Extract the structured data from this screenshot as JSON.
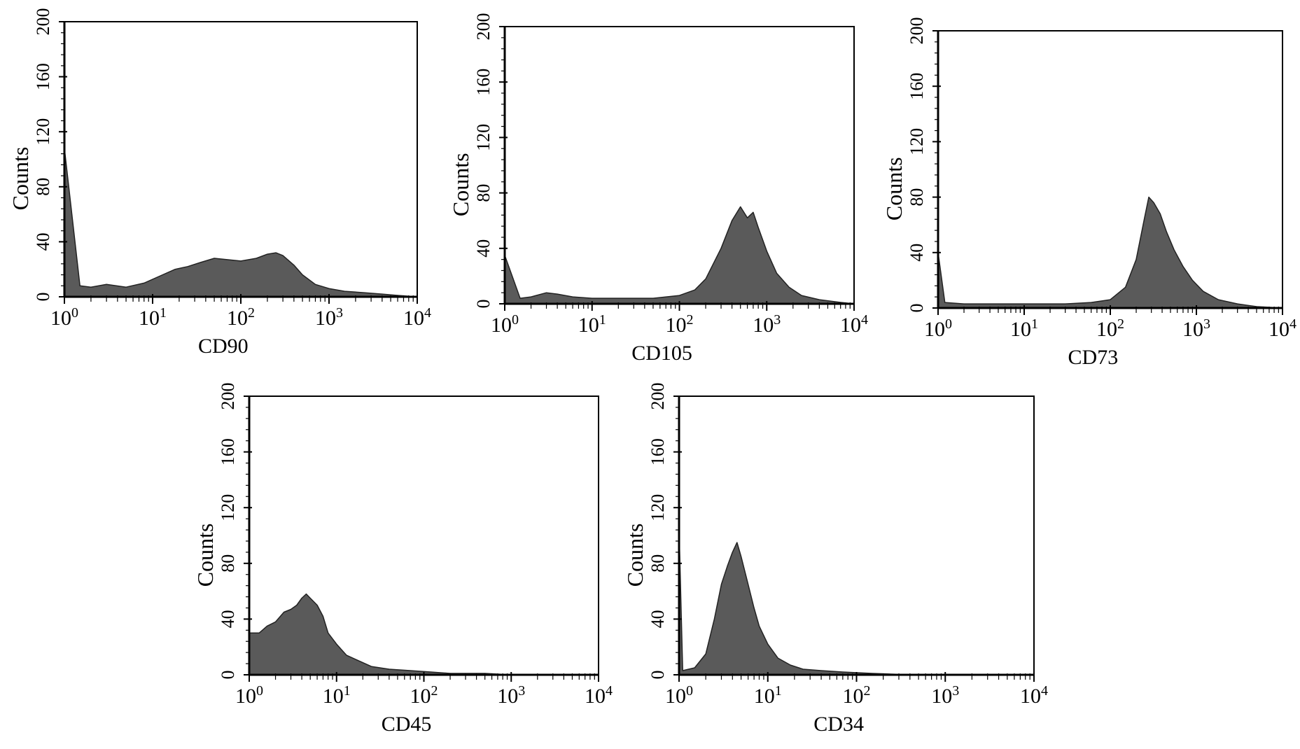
{
  "chart_data": [
    {
      "type": "area",
      "xlabel": "CD90",
      "ylabel": "Counts",
      "x_scale": "log",
      "xlim": [
        1,
        10000
      ],
      "ylim": [
        0,
        200
      ],
      "x_ticks": [
        {
          "base": "10",
          "exp": "0"
        },
        {
          "base": "10",
          "exp": "1"
        },
        {
          "base": "10",
          "exp": "2"
        },
        {
          "base": "10",
          "exp": "3"
        },
        {
          "base": "10",
          "exp": "4"
        }
      ],
      "y_ticks": [
        "0",
        "40",
        "80",
        "120",
        "160",
        "200"
      ],
      "x": [
        1,
        1.5,
        2,
        3,
        5,
        8,
        12,
        18,
        25,
        35,
        50,
        70,
        100,
        150,
        200,
        250,
        300,
        400,
        500,
        700,
        1000,
        1500,
        2500,
        4000,
        6000,
        10000
      ],
      "values": [
        108,
        8,
        7,
        9,
        7,
        10,
        15,
        20,
        22,
        25,
        28,
        27,
        26,
        28,
        31,
        32,
        30,
        23,
        16,
        9,
        6,
        4,
        3,
        2,
        1,
        0
      ]
    },
    {
      "type": "area",
      "xlabel": "CD105",
      "ylabel": "Counts",
      "x_scale": "log",
      "xlim": [
        1,
        10000
      ],
      "ylim": [
        0,
        200
      ],
      "x_ticks": [
        {
          "base": "10",
          "exp": "0"
        },
        {
          "base": "10",
          "exp": "1"
        },
        {
          "base": "10",
          "exp": "2"
        },
        {
          "base": "10",
          "exp": "3"
        },
        {
          "base": "10",
          "exp": "4"
        }
      ],
      "y_ticks": [
        "0",
        "40",
        "80",
        "120",
        "160",
        "200"
      ],
      "x": [
        1,
        1.5,
        2,
        3,
        4,
        6,
        10,
        20,
        50,
        100,
        150,
        200,
        300,
        400,
        500,
        600,
        700,
        800,
        1000,
        1300,
        1800,
        2500,
        4000,
        7000,
        10000
      ],
      "values": [
        35,
        4,
        5,
        8,
        7,
        5,
        4,
        4,
        4,
        6,
        10,
        18,
        40,
        60,
        70,
        62,
        66,
        55,
        38,
        22,
        12,
        6,
        3,
        1,
        0
      ]
    },
    {
      "type": "area",
      "xlabel": "CD73",
      "ylabel": "Counts",
      "x_scale": "log",
      "xlim": [
        1,
        10000
      ],
      "ylim": [
        0,
        200
      ],
      "x_ticks": [
        {
          "base": "10",
          "exp": "0"
        },
        {
          "base": "10",
          "exp": "1"
        },
        {
          "base": "10",
          "exp": "2"
        },
        {
          "base": "10",
          "exp": "3"
        },
        {
          "base": "10",
          "exp": "4"
        }
      ],
      "y_ticks": [
        "0",
        "40",
        "80",
        "120",
        "160",
        "200"
      ],
      "x": [
        1,
        1.2,
        2,
        5,
        10,
        30,
        60,
        100,
        150,
        200,
        250,
        280,
        320,
        380,
        450,
        550,
        700,
        900,
        1200,
        1800,
        3000,
        5000,
        10000
      ],
      "values": [
        40,
        4,
        3,
        3,
        3,
        3,
        4,
        6,
        15,
        35,
        65,
        80,
        76,
        68,
        55,
        42,
        30,
        20,
        12,
        6,
        3,
        1,
        0
      ]
    },
    {
      "type": "area",
      "xlabel": "CD45",
      "ylabel": "Counts",
      "x_scale": "log",
      "xlim": [
        1,
        10000
      ],
      "ylim": [
        0,
        200
      ],
      "x_ticks": [
        {
          "base": "10",
          "exp": "0"
        },
        {
          "base": "10",
          "exp": "1"
        },
        {
          "base": "10",
          "exp": "2"
        },
        {
          "base": "10",
          "exp": "3"
        },
        {
          "base": "10",
          "exp": "4"
        }
      ],
      "y_ticks": [
        "0",
        "40",
        "80",
        "120",
        "160",
        "200"
      ],
      "x": [
        1,
        1.3,
        1.6,
        2,
        2.5,
        3,
        3.5,
        4,
        4.5,
        5,
        6,
        7,
        8,
        10,
        13,
        18,
        25,
        40,
        70,
        120,
        200,
        500,
        1000,
        10000
      ],
      "values": [
        30,
        30,
        35,
        38,
        45,
        47,
        50,
        55,
        58,
        55,
        50,
        42,
        30,
        22,
        14,
        10,
        6,
        4,
        3,
        2,
        1,
        1,
        0,
        0
      ]
    },
    {
      "type": "area",
      "xlabel": "CD34",
      "ylabel": "Counts",
      "x_scale": "log",
      "xlim": [
        1,
        10000
      ],
      "ylim": [
        0,
        200
      ],
      "x_ticks": [
        {
          "base": "10",
          "exp": "0"
        },
        {
          "base": "10",
          "exp": "1"
        },
        {
          "base": "10",
          "exp": "2"
        },
        {
          "base": "10",
          "exp": "3"
        },
        {
          "base": "10",
          "exp": "4"
        }
      ],
      "y_ticks": [
        "0",
        "40",
        "80",
        "120",
        "160",
        "200"
      ],
      "x": [
        1,
        1.1,
        1.5,
        2,
        2.5,
        3,
        3.5,
        4,
        4.5,
        5,
        6,
        7,
        8,
        10,
        13,
        18,
        25,
        40,
        70,
        150,
        400,
        1000,
        10000
      ],
      "values": [
        105,
        3,
        5,
        15,
        40,
        65,
        78,
        88,
        95,
        85,
        65,
        48,
        35,
        22,
        12,
        7,
        4,
        3,
        2,
        1,
        0,
        0,
        0
      ]
    }
  ]
}
